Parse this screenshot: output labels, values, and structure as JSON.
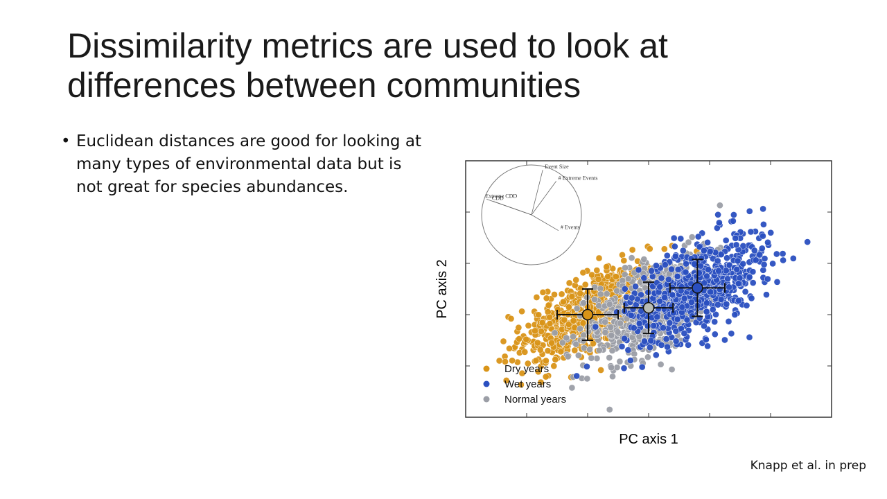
{
  "slide": {
    "title": "Dissimilarity metrics are used to look at differences between communities",
    "bullets": [
      "Euclidean distances are good for looking at many types of environmental data but is not great for species abundances."
    ],
    "citation": "Knapp et al. in prep"
  },
  "colors": {
    "dry": "#d99418",
    "wet": "#2a4fc0",
    "normal": "#9b9ea6",
    "dry_centroid": "#d99418",
    "normal_centroid": "#b9bcb5",
    "wet_centroid": "#2a4fc0"
  },
  "chart_data": {
    "type": "scatter",
    "xlabel": "PC axis 1",
    "ylabel": "PC axis 2",
    "xlim": [
      -3,
      3
    ],
    "ylim": [
      -2,
      2.5
    ],
    "grid": false,
    "legend_position": "bottom-left",
    "series": [
      {
        "name": "Dry years",
        "key": "dry",
        "centroid": [
          -1,
          -0.2
        ],
        "error_x": 0.5,
        "error_y": 0.45,
        "spread_x": 0.55,
        "spread_y": 0.5,
        "count": 620
      },
      {
        "name": "Normal years",
        "key": "normal",
        "centroid": [
          0,
          -0.08
        ],
        "error_x": 0.4,
        "error_y": 0.45,
        "spread_x": 0.5,
        "spread_y": 0.55,
        "count": 620
      },
      {
        "name": "Wet years",
        "key": "wet",
        "centroid": [
          0.8,
          0.27
        ],
        "error_x": 0.45,
        "error_y": 0.5,
        "spread_x": 0.55,
        "spread_y": 0.55,
        "count": 650
      }
    ],
    "biplot": {
      "vectors": [
        {
          "label": "Event Size",
          "dx": 0.25,
          "dy": 1.0
        },
        {
          "label": "# Extreme Events",
          "dx": 0.55,
          "dy": 0.75
        },
        {
          "label": "Extreme CDD",
          "dx": -1.0,
          "dy": 0.35
        },
        {
          "label": "CDD",
          "dx": -0.85,
          "dy": 0.3
        },
        {
          "label": "# Events",
          "dx": 0.6,
          "dy": -0.35
        }
      ]
    }
  }
}
